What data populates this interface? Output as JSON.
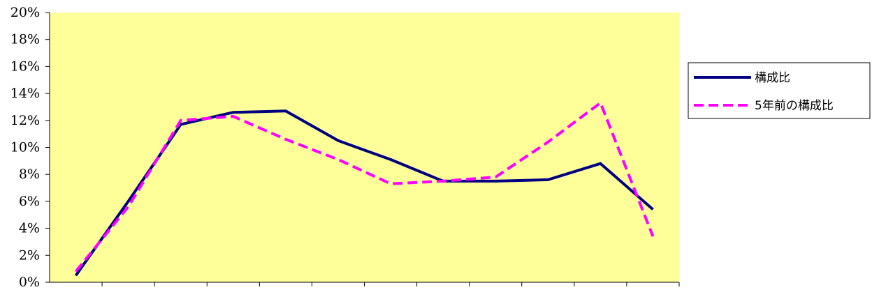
{
  "chart_data": {
    "type": "line",
    "title": "",
    "xlabel": "",
    "ylabel": "",
    "categories": [
      "",
      "",
      "",
      "",
      "",
      "",
      "",
      "",
      "",
      "",
      "",
      ""
    ],
    "ylim": [
      0,
      20
    ],
    "y_ticks": [
      "0%",
      "2%",
      "4%",
      "6%",
      "8%",
      "10%",
      "12%",
      "14%",
      "16%",
      "18%",
      "20%"
    ],
    "grid": false,
    "plot_background": "#FFFF99",
    "legend_position": "right",
    "series": [
      {
        "name": "構成比",
        "color": "#000080",
        "style": "solid",
        "values": [
          0.5,
          6.0,
          11.7,
          12.6,
          12.7,
          10.5,
          9.1,
          7.5,
          7.5,
          7.6,
          8.8,
          5.4
        ]
      },
      {
        "name": "5年前の構成比",
        "color": "#FF00FF",
        "style": "dashed",
        "values": [
          0.8,
          5.6,
          12.0,
          12.3,
          10.6,
          9.1,
          7.3,
          7.5,
          7.8,
          10.4,
          13.3,
          3.4
        ]
      }
    ]
  }
}
